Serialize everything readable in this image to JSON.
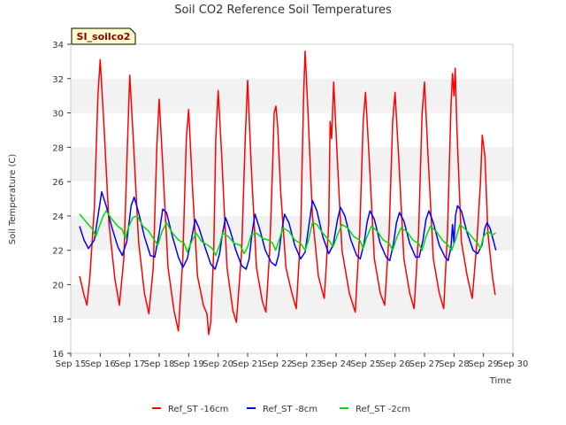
{
  "chart_data": {
    "type": "line",
    "title": "Soil CO2 Reference Soil Temperatures",
    "site_label": "SI_soilco2",
    "xlabel": "Time",
    "ylabel": "Soil Temperature (C)",
    "xlim": [
      15,
      30
    ],
    "ylim": [
      16,
      34
    ],
    "x_ticks": [
      {
        "v": 15,
        "label": "Sep 15"
      },
      {
        "v": 16,
        "label": "Sep 16"
      },
      {
        "v": 17,
        "label": "Sep 17"
      },
      {
        "v": 18,
        "label": "Sep 18"
      },
      {
        "v": 19,
        "label": "Sep 19"
      },
      {
        "v": 20,
        "label": "Sep 20"
      },
      {
        "v": 21,
        "label": "Sep 21"
      },
      {
        "v": 22,
        "label": "Sep 22"
      },
      {
        "v": 23,
        "label": "Sep 23"
      },
      {
        "v": 24,
        "label": "Sep 24"
      },
      {
        "v": 25,
        "label": "Sep 25"
      },
      {
        "v": 26,
        "label": "Sep 26"
      },
      {
        "v": 27,
        "label": "Sep 27"
      },
      {
        "v": 28,
        "label": "Sep 28"
      },
      {
        "v": 29,
        "label": "Sep 29"
      },
      {
        "v": 30,
        "label": "Sep 30"
      }
    ],
    "y_ticks": [
      16,
      18,
      20,
      22,
      24,
      26,
      28,
      30,
      32,
      34
    ],
    "grid": "horizontal bands",
    "legend_position": "bottom",
    "series": [
      {
        "name": "Ref_ST -16cm",
        "color": "#ff0000",
        "points": [
          [
            15.3,
            20.5
          ],
          [
            15.45,
            19.4
          ],
          [
            15.55,
            18.8
          ],
          [
            15.65,
            20.5
          ],
          [
            15.8,
            24.5
          ],
          [
            15.92,
            31.0
          ],
          [
            16.0,
            33.1
          ],
          [
            16.12,
            29.5
          ],
          [
            16.3,
            23.5
          ],
          [
            16.5,
            20.3
          ],
          [
            16.65,
            18.8
          ],
          [
            16.8,
            21.5
          ],
          [
            16.92,
            28.0
          ],
          [
            17.0,
            32.2
          ],
          [
            17.12,
            28.5
          ],
          [
            17.3,
            22.5
          ],
          [
            17.5,
            19.5
          ],
          [
            17.65,
            18.3
          ],
          [
            17.8,
            21.0
          ],
          [
            17.92,
            28.0
          ],
          [
            18.0,
            30.8
          ],
          [
            18.12,
            27.0
          ],
          [
            18.3,
            21.0
          ],
          [
            18.5,
            18.5
          ],
          [
            18.65,
            17.3
          ],
          [
            18.8,
            21.5
          ],
          [
            18.92,
            28.5
          ],
          [
            19.0,
            30.2
          ],
          [
            19.12,
            26.0
          ],
          [
            19.3,
            20.5
          ],
          [
            19.5,
            18.8
          ],
          [
            19.62,
            18.3
          ],
          [
            19.68,
            17.1
          ],
          [
            19.75,
            17.8
          ],
          [
            19.85,
            22.0
          ],
          [
            19.92,
            28.5
          ],
          [
            20.0,
            31.3
          ],
          [
            20.12,
            27.5
          ],
          [
            20.3,
            21.0
          ],
          [
            20.5,
            18.5
          ],
          [
            20.62,
            17.8
          ],
          [
            20.8,
            22.0
          ],
          [
            20.92,
            28.5
          ],
          [
            21.0,
            31.9
          ],
          [
            21.12,
            27.0
          ],
          [
            21.3,
            21.0
          ],
          [
            21.5,
            19.0
          ],
          [
            21.62,
            18.4
          ],
          [
            21.75,
            22.0
          ],
          [
            21.85,
            27.0
          ],
          [
            21.9,
            30.0
          ],
          [
            21.96,
            30.4
          ],
          [
            22.02,
            29.2
          ],
          [
            22.12,
            25.5
          ],
          [
            22.3,
            21.0
          ],
          [
            22.5,
            19.5
          ],
          [
            22.65,
            18.6
          ],
          [
            22.8,
            23.0
          ],
          [
            22.9,
            31.0
          ],
          [
            22.95,
            33.6
          ],
          [
            23.05,
            30.0
          ],
          [
            23.2,
            24.0
          ],
          [
            23.4,
            20.5
          ],
          [
            23.55,
            19.5
          ],
          [
            23.6,
            19.2
          ],
          [
            23.75,
            23.5
          ],
          [
            23.8,
            29.5
          ],
          [
            23.85,
            28.5
          ],
          [
            23.92,
            31.8
          ],
          [
            24.05,
            27.0
          ],
          [
            24.2,
            22.0
          ],
          [
            24.45,
            19.5
          ],
          [
            24.65,
            18.4
          ],
          [
            24.8,
            23.0
          ],
          [
            24.92,
            29.5
          ],
          [
            25.0,
            31.2
          ],
          [
            25.12,
            27.5
          ],
          [
            25.3,
            21.5
          ],
          [
            25.5,
            19.5
          ],
          [
            25.65,
            18.8
          ],
          [
            25.8,
            23.0
          ],
          [
            25.92,
            29.5
          ],
          [
            26.0,
            31.2
          ],
          [
            26.12,
            27.5
          ],
          [
            26.3,
            21.5
          ],
          [
            26.5,
            19.5
          ],
          [
            26.65,
            18.6
          ],
          [
            26.8,
            23.0
          ],
          [
            26.92,
            30.0
          ],
          [
            27.0,
            31.8
          ],
          [
            27.12,
            27.5
          ],
          [
            27.3,
            21.5
          ],
          [
            27.5,
            19.5
          ],
          [
            27.65,
            18.6
          ],
          [
            27.78,
            23.0
          ],
          [
            27.9,
            30.5
          ],
          [
            27.95,
            32.3
          ],
          [
            28.0,
            31.0
          ],
          [
            28.04,
            32.6
          ],
          [
            28.1,
            29.0
          ],
          [
            28.25,
            22.5
          ],
          [
            28.45,
            20.5
          ],
          [
            28.62,
            19.2
          ],
          [
            28.78,
            22.5
          ],
          [
            28.9,
            26.0
          ],
          [
            28.96,
            28.7
          ],
          [
            29.05,
            27.5
          ],
          [
            29.15,
            23.0
          ],
          [
            29.3,
            20.5
          ],
          [
            29.4,
            19.4
          ]
        ]
      },
      {
        "name": "Ref_ST -8cm",
        "color": "#0000ff",
        "points": [
          [
            15.3,
            23.4
          ],
          [
            15.45,
            22.6
          ],
          [
            15.6,
            22.1
          ],
          [
            15.8,
            22.6
          ],
          [
            15.95,
            24.3
          ],
          [
            16.05,
            25.4
          ],
          [
            16.2,
            24.6
          ],
          [
            16.4,
            23.3
          ],
          [
            16.6,
            22.2
          ],
          [
            16.75,
            21.7
          ],
          [
            16.9,
            22.5
          ],
          [
            17.05,
            24.6
          ],
          [
            17.15,
            25.1
          ],
          [
            17.3,
            24.2
          ],
          [
            17.5,
            22.8
          ],
          [
            17.7,
            21.7
          ],
          [
            17.85,
            21.6
          ],
          [
            18.0,
            23.0
          ],
          [
            18.12,
            24.4
          ],
          [
            18.25,
            24.2
          ],
          [
            18.45,
            22.8
          ],
          [
            18.65,
            21.6
          ],
          [
            18.8,
            21.0
          ],
          [
            18.95,
            21.5
          ],
          [
            19.1,
            22.7
          ],
          [
            19.22,
            23.8
          ],
          [
            19.35,
            23.3
          ],
          [
            19.55,
            22.2
          ],
          [
            19.75,
            21.2
          ],
          [
            19.9,
            20.9
          ],
          [
            20.05,
            21.8
          ],
          [
            20.15,
            23.0
          ],
          [
            20.25,
            23.9
          ],
          [
            20.4,
            23.2
          ],
          [
            20.6,
            22.0
          ],
          [
            20.8,
            21.1
          ],
          [
            20.95,
            20.9
          ],
          [
            21.05,
            21.5
          ],
          [
            21.15,
            23.0
          ],
          [
            21.25,
            24.1
          ],
          [
            21.4,
            23.3
          ],
          [
            21.6,
            22.0
          ],
          [
            21.8,
            21.3
          ],
          [
            21.95,
            21.1
          ],
          [
            22.05,
            21.7
          ],
          [
            22.15,
            23.0
          ],
          [
            22.25,
            24.1
          ],
          [
            22.4,
            23.6
          ],
          [
            22.6,
            22.3
          ],
          [
            22.8,
            21.5
          ],
          [
            22.95,
            21.9
          ],
          [
            23.1,
            23.7
          ],
          [
            23.2,
            24.9
          ],
          [
            23.35,
            24.3
          ],
          [
            23.55,
            22.8
          ],
          [
            23.75,
            21.8
          ],
          [
            23.9,
            22.3
          ],
          [
            24.05,
            23.8
          ],
          [
            24.15,
            24.5
          ],
          [
            24.3,
            24.0
          ],
          [
            24.5,
            22.6
          ],
          [
            24.7,
            21.7
          ],
          [
            24.82,
            21.5
          ],
          [
            24.95,
            22.4
          ],
          [
            25.05,
            23.6
          ],
          [
            25.15,
            24.3
          ],
          [
            25.3,
            23.8
          ],
          [
            25.5,
            22.4
          ],
          [
            25.7,
            21.6
          ],
          [
            25.82,
            21.4
          ],
          [
            25.95,
            22.4
          ],
          [
            26.05,
            23.6
          ],
          [
            26.15,
            24.2
          ],
          [
            26.3,
            23.7
          ],
          [
            26.5,
            22.4
          ],
          [
            26.7,
            21.6
          ],
          [
            26.82,
            21.6
          ],
          [
            26.95,
            22.6
          ],
          [
            27.05,
            23.8
          ],
          [
            27.15,
            24.3
          ],
          [
            27.3,
            23.6
          ],
          [
            27.5,
            22.3
          ],
          [
            27.7,
            21.6
          ],
          [
            27.8,
            21.4
          ],
          [
            27.9,
            22.2
          ],
          [
            27.95,
            23.5
          ],
          [
            28.0,
            22.4
          ],
          [
            28.05,
            24.0
          ],
          [
            28.12,
            24.6
          ],
          [
            28.25,
            24.3
          ],
          [
            28.45,
            23.0
          ],
          [
            28.65,
            22.0
          ],
          [
            28.8,
            21.8
          ],
          [
            28.95,
            22.3
          ],
          [
            29.05,
            23.3
          ],
          [
            29.12,
            23.6
          ],
          [
            29.22,
            23.3
          ],
          [
            29.35,
            22.5
          ],
          [
            29.42,
            22.0
          ]
        ]
      },
      {
        "name": "Ref_ST -2cm",
        "color": "#00dd00",
        "points": [
          [
            15.3,
            24.1
          ],
          [
            15.45,
            23.8
          ],
          [
            15.6,
            23.5
          ],
          [
            15.75,
            23.2
          ],
          [
            15.85,
            22.8
          ],
          [
            15.95,
            23.3
          ],
          [
            16.1,
            24.0
          ],
          [
            16.2,
            24.3
          ],
          [
            16.4,
            23.8
          ],
          [
            16.6,
            23.4
          ],
          [
            16.75,
            23.2
          ],
          [
            16.85,
            22.7
          ],
          [
            16.95,
            23.3
          ],
          [
            17.1,
            23.9
          ],
          [
            17.25,
            24.0
          ],
          [
            17.45,
            23.4
          ],
          [
            17.65,
            23.1
          ],
          [
            17.8,
            22.7
          ],
          [
            17.95,
            22.3
          ],
          [
            18.1,
            23.1
          ],
          [
            18.25,
            23.6
          ],
          [
            18.45,
            23.0
          ],
          [
            18.65,
            22.6
          ],
          [
            18.85,
            22.4
          ],
          [
            18.95,
            21.9
          ],
          [
            19.1,
            22.5
          ],
          [
            19.25,
            23.0
          ],
          [
            19.45,
            22.5
          ],
          [
            19.65,
            22.3
          ],
          [
            19.8,
            22.1
          ],
          [
            19.92,
            21.7
          ],
          [
            20.05,
            22.3
          ],
          [
            20.15,
            23.0
          ],
          [
            20.35,
            22.8
          ],
          [
            20.55,
            22.4
          ],
          [
            20.75,
            22.3
          ],
          [
            20.88,
            21.8
          ],
          [
            21.0,
            22.2
          ],
          [
            21.12,
            22.9
          ],
          [
            21.3,
            23.0
          ],
          [
            21.5,
            22.7
          ],
          [
            21.7,
            22.6
          ],
          [
            21.85,
            22.4
          ],
          [
            21.95,
            22.0
          ],
          [
            22.05,
            22.5
          ],
          [
            22.2,
            23.3
          ],
          [
            22.4,
            23.1
          ],
          [
            22.6,
            22.6
          ],
          [
            22.8,
            22.4
          ],
          [
            22.95,
            22.0
          ],
          [
            23.05,
            22.5
          ],
          [
            23.2,
            23.6
          ],
          [
            23.35,
            23.5
          ],
          [
            23.55,
            23.0
          ],
          [
            23.75,
            22.6
          ],
          [
            23.9,
            22.2
          ],
          [
            24.05,
            22.9
          ],
          [
            24.2,
            23.5
          ],
          [
            24.4,
            23.3
          ],
          [
            24.6,
            22.8
          ],
          [
            24.8,
            22.6
          ],
          [
            24.92,
            22.1
          ],
          [
            25.05,
            22.8
          ],
          [
            25.2,
            23.4
          ],
          [
            25.4,
            23.1
          ],
          [
            25.6,
            22.6
          ],
          [
            25.8,
            22.4
          ],
          [
            25.92,
            22.0
          ],
          [
            26.05,
            22.7
          ],
          [
            26.2,
            23.3
          ],
          [
            26.4,
            23.1
          ],
          [
            26.6,
            22.6
          ],
          [
            26.8,
            22.4
          ],
          [
            26.92,
            22.0
          ],
          [
            27.05,
            22.8
          ],
          [
            27.2,
            23.4
          ],
          [
            27.4,
            23.1
          ],
          [
            27.6,
            22.6
          ],
          [
            27.8,
            22.3
          ],
          [
            27.92,
            22.0
          ],
          [
            28.05,
            22.6
          ],
          [
            28.2,
            23.5
          ],
          [
            28.4,
            23.2
          ],
          [
            28.6,
            22.8
          ],
          [
            28.8,
            22.4
          ],
          [
            28.9,
            22.1
          ],
          [
            29.0,
            22.8
          ],
          [
            29.15,
            23.1
          ],
          [
            29.3,
            22.9
          ],
          [
            29.42,
            23.0
          ]
        ]
      }
    ]
  }
}
